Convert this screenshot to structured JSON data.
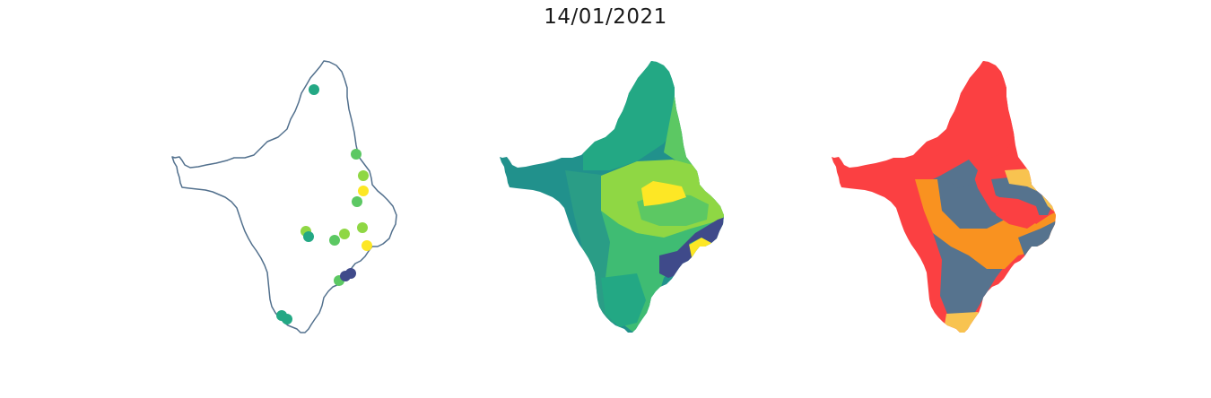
{
  "title": "14/01/2021",
  "colors": {
    "outline": "#52708d",
    "viridis_dark": "#3f4a8a",
    "viridis_teal": "#21918c",
    "viridis_mid": "#23a884",
    "viridis_green": "#5cc863",
    "viridis_lightgreen": "#8fd744",
    "viridis_yellow": "#fde725",
    "class_red": "#fb4042",
    "class_orange": "#f99220",
    "class_slate": "#56738e",
    "class_gold": "#f8c350"
  },
  "panels": [
    {
      "name": "station-points-map",
      "type": "point-map"
    },
    {
      "name": "interpolated-map",
      "type": "choropleth"
    },
    {
      "name": "classified-map",
      "type": "choropleth"
    }
  ]
}
